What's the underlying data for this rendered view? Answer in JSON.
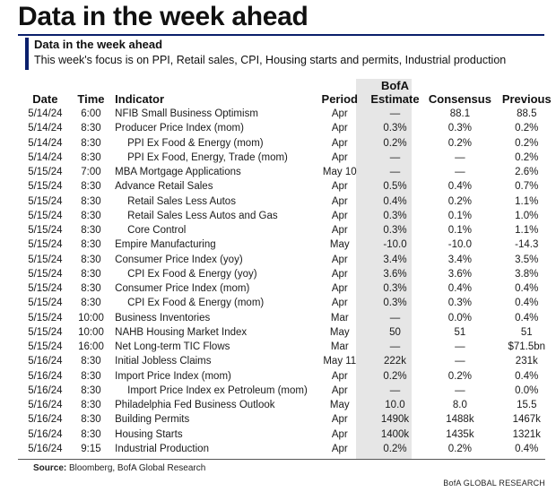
{
  "title": "Data in the week ahead",
  "header": {
    "title": "Data in the week ahead",
    "subtitle": "This week's focus is on PPI, Retail sales, CPI, Housing starts and permits, Industrial production"
  },
  "columns": {
    "date": "Date",
    "time": "Time",
    "indicator": "Indicator",
    "period": "Period",
    "bofa_line1": "BofA",
    "bofa_line2": "Estimate",
    "consensus": "Consensus",
    "previous": "Previous"
  },
  "rows": [
    {
      "date": "5/14/24",
      "time": "6:00",
      "indicator": "NFIB Small Business Optimism",
      "indent": false,
      "period": "Apr",
      "bofa": "—",
      "consensus": "88.1",
      "previous": "88.5"
    },
    {
      "date": "5/14/24",
      "time": "8:30",
      "indicator": "Producer Price Index (mom)",
      "indent": false,
      "period": "Apr",
      "bofa": "0.3%",
      "consensus": "0.3%",
      "previous": "0.2%"
    },
    {
      "date": "5/14/24",
      "time": "8:30",
      "indicator": "PPI Ex Food & Energy (mom)",
      "indent": true,
      "period": "Apr",
      "bofa": "0.2%",
      "consensus": "0.2%",
      "previous": "0.2%"
    },
    {
      "date": "5/14/24",
      "time": "8:30",
      "indicator": "PPI Ex Food, Energy, Trade (mom)",
      "indent": true,
      "period": "Apr",
      "bofa": "—",
      "consensus": "—",
      "previous": "0.2%"
    },
    {
      "date": "5/15/24",
      "time": "7:00",
      "indicator": "MBA Mortgage Applications",
      "indent": false,
      "period": "May 10",
      "bofa": "—",
      "consensus": "—",
      "previous": "2.6%"
    },
    {
      "date": "5/15/24",
      "time": "8:30",
      "indicator": "Advance Retail Sales",
      "indent": false,
      "period": "Apr",
      "bofa": "0.5%",
      "consensus": "0.4%",
      "previous": "0.7%"
    },
    {
      "date": "5/15/24",
      "time": "8:30",
      "indicator": "Retail Sales Less Autos",
      "indent": true,
      "period": "Apr",
      "bofa": "0.4%",
      "consensus": "0.2%",
      "previous": "1.1%"
    },
    {
      "date": "5/15/24",
      "time": "8:30",
      "indicator": "Retail Sales Less Autos and Gas",
      "indent": true,
      "period": "Apr",
      "bofa": "0.3%",
      "consensus": "0.1%",
      "previous": "1.0%"
    },
    {
      "date": "5/15/24",
      "time": "8:30",
      "indicator": "Core Control",
      "indent": true,
      "period": "Apr",
      "bofa": "0.3%",
      "consensus": "0.1%",
      "previous": "1.1%"
    },
    {
      "date": "5/15/24",
      "time": "8:30",
      "indicator": "Empire Manufacturing",
      "indent": false,
      "period": "May",
      "bofa": "-10.0",
      "consensus": "-10.0",
      "previous": "-14.3"
    },
    {
      "date": "5/15/24",
      "time": "8:30",
      "indicator": "Consumer Price Index (yoy)",
      "indent": false,
      "period": "Apr",
      "bofa": "3.4%",
      "consensus": "3.4%",
      "previous": "3.5%"
    },
    {
      "date": "5/15/24",
      "time": "8:30",
      "indicator": "CPI Ex Food & Energy (yoy)",
      "indent": true,
      "period": "Apr",
      "bofa": "3.6%",
      "consensus": "3.6%",
      "previous": "3.8%"
    },
    {
      "date": "5/15/24",
      "time": "8:30",
      "indicator": "Consumer Price Index (mom)",
      "indent": false,
      "period": "Apr",
      "bofa": "0.3%",
      "consensus": "0.4%",
      "previous": "0.4%"
    },
    {
      "date": "5/15/24",
      "time": "8:30",
      "indicator": "CPI Ex Food & Energy (mom)",
      "indent": true,
      "period": "Apr",
      "bofa": "0.3%",
      "consensus": "0.3%",
      "previous": "0.4%"
    },
    {
      "date": "5/15/24",
      "time": "10:00",
      "indicator": "Business Inventories",
      "indent": false,
      "period": "Mar",
      "bofa": "—",
      "consensus": "0.0%",
      "previous": "0.4%"
    },
    {
      "date": "5/15/24",
      "time": "10:00",
      "indicator": "NAHB Housing Market Index",
      "indent": false,
      "period": "May",
      "bofa": "50",
      "consensus": "51",
      "previous": "51"
    },
    {
      "date": "5/15/24",
      "time": "16:00",
      "indicator": "Net Long-term TIC Flows",
      "indent": false,
      "period": "Mar",
      "bofa": "—",
      "consensus": "—",
      "previous": "$71.5bn"
    },
    {
      "date": "5/16/24",
      "time": "8:30",
      "indicator": "Initial Jobless Claims",
      "indent": false,
      "period": "May 11",
      "bofa": "222k",
      "consensus": "—",
      "previous": "231k"
    },
    {
      "date": "5/16/24",
      "time": "8:30",
      "indicator": "Import Price Index (mom)",
      "indent": false,
      "period": "Apr",
      "bofa": "0.2%",
      "consensus": "0.2%",
      "previous": "0.4%"
    },
    {
      "date": "5/16/24",
      "time": "8:30",
      "indicator": "Import Price Index ex Petroleum (mom)",
      "indent": true,
      "period": "Apr",
      "bofa": "—",
      "consensus": "—",
      "previous": "0.0%"
    },
    {
      "date": "5/16/24",
      "time": "8:30",
      "indicator": "Philadelphia Fed Business Outlook",
      "indent": false,
      "period": "May",
      "bofa": "10.0",
      "consensus": "8.0",
      "previous": "15.5"
    },
    {
      "date": "5/16/24",
      "time": "8:30",
      "indicator": "Building Permits",
      "indent": false,
      "period": "Apr",
      "bofa": "1490k",
      "consensus": "1488k",
      "previous": "1467k"
    },
    {
      "date": "5/16/24",
      "time": "8:30",
      "indicator": "Housing Starts",
      "indent": false,
      "period": "Apr",
      "bofa": "1400k",
      "consensus": "1435k",
      "previous": "1321k"
    },
    {
      "date": "5/16/24",
      "time": "9:15",
      "indicator": "Industrial Production",
      "indent": false,
      "period": "Apr",
      "bofa": "0.2%",
      "consensus": "0.2%",
      "previous": "0.4%"
    }
  ],
  "source": {
    "label": "Source:",
    "text": "Bloomberg, BofA Global Research"
  },
  "branding": "BofA GLOBAL RESEARCH",
  "colors": {
    "accent": "#0a1f6b",
    "shade": "#e6e6e6"
  }
}
